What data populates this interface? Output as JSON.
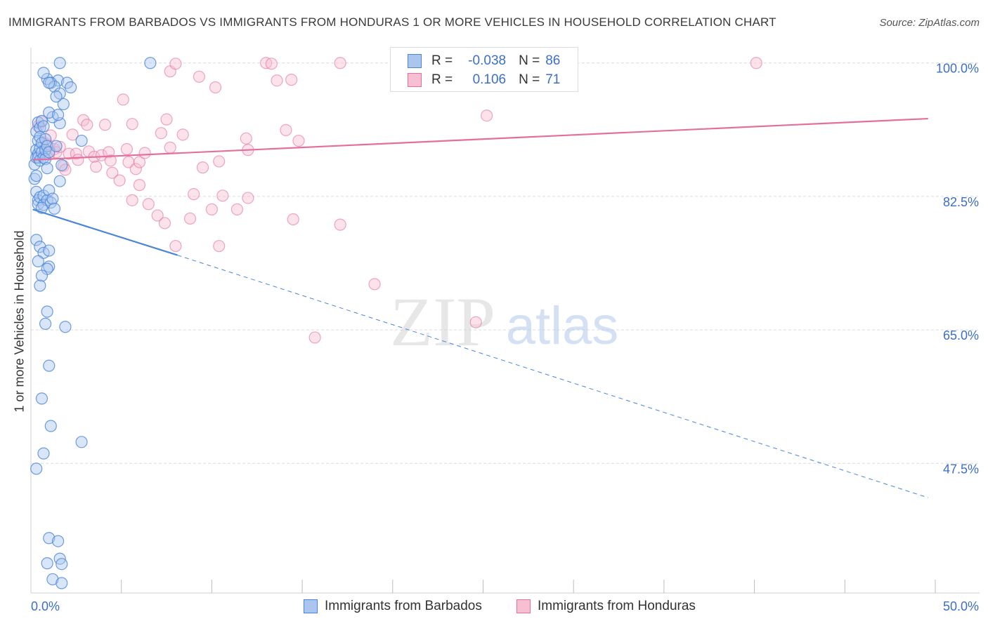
{
  "title": "IMMIGRANTS FROM BARBADOS VS IMMIGRANTS FROM HONDURAS 1 OR MORE VEHICLES IN HOUSEHOLD CORRELATION CHART",
  "source": "Source: ZipAtlas.com",
  "watermark": {
    "zip": "ZIP",
    "atlas": "atlas"
  },
  "stats": {
    "r_label": "R =",
    "n_label": "N =",
    "barbados": {
      "r": "-0.038",
      "n": "86"
    },
    "honduras": {
      "r": "0.106",
      "n": "71"
    }
  },
  "colors": {
    "blue": "#4a86d8",
    "blue_fill": "#aac6ef",
    "pink": "#e46f9c",
    "pink_fill": "#f7bfd2",
    "grid": "#dcdcdc",
    "tick_label": "#3b6fc9"
  },
  "chart_data": {
    "type": "scatter",
    "title": "IMMIGRANTS FROM BARBADOS VS IMMIGRANTS FROM HONDURAS 1 OR MORE VEHICLES IN HOUSEHOLD CORRELATION CHART",
    "xlabel": "",
    "ylabel": "1 or more Vehicles in Household",
    "xlim": [
      0,
      50
    ],
    "ylim": [
      30.5,
      102
    ],
    "x_tick_labels": {
      "min": "0.0%",
      "max": "50.0%"
    },
    "y_ticks": [
      {
        "value": 100,
        "label": "100.0%"
      },
      {
        "value": 82.5,
        "label": "82.5%"
      },
      {
        "value": 65,
        "label": "65.0%"
      },
      {
        "value": 47.5,
        "label": "47.5%"
      }
    ],
    "grid": true,
    "legend": "bottom-center",
    "series": [
      {
        "name": "Immigrants from Barbados",
        "color": "#4a86d8",
        "trend": {
          "x1": 0.1,
          "y1": 80.8,
          "x2": 8.1,
          "y2": 74.8,
          "dash_to_x": 49.6,
          "dash_to_y": 43.0
        },
        "points": [
          [
            0.2,
            86.7
          ],
          [
            0.2,
            84.8
          ],
          [
            0.3,
            91.0
          ],
          [
            0.3,
            88.6
          ],
          [
            0.3,
            87.6
          ],
          [
            0.3,
            85.2
          ],
          [
            0.4,
            92.2
          ],
          [
            0.4,
            89.8
          ],
          [
            0.4,
            88.1
          ],
          [
            0.4,
            87.6
          ],
          [
            0.5,
            91.5
          ],
          [
            0.5,
            90.3
          ],
          [
            0.5,
            88.8
          ],
          [
            0.5,
            87.2
          ],
          [
            0.6,
            92.4
          ],
          [
            0.6,
            89.5
          ],
          [
            0.6,
            88.3
          ],
          [
            0.7,
            91.7
          ],
          [
            0.7,
            87.6
          ],
          [
            0.8,
            90.0
          ],
          [
            0.8,
            88.6
          ],
          [
            0.8,
            87.4
          ],
          [
            0.9,
            89.1
          ],
          [
            0.9,
            86.2
          ],
          [
            1.0,
            88.3
          ],
          [
            0.3,
            83.1
          ],
          [
            0.4,
            82.0
          ],
          [
            0.4,
            81.5
          ],
          [
            0.5,
            82.4
          ],
          [
            0.7,
            82.6
          ],
          [
            0.7,
            81.4
          ],
          [
            0.9,
            82.0
          ],
          [
            1.0,
            83.3
          ],
          [
            1.1,
            81.7
          ],
          [
            0.6,
            81.0
          ],
          [
            1.2,
            82.2
          ],
          [
            1.3,
            80.9
          ],
          [
            1.4,
            89.1
          ],
          [
            1.7,
            86.6
          ],
          [
            1.6,
            84.5
          ],
          [
            1.6,
            92.1
          ],
          [
            2.8,
            89.8
          ],
          [
            1.5,
            97.7
          ],
          [
            2.0,
            97.4
          ],
          [
            2.2,
            96.8
          ],
          [
            0.9,
            97.9
          ],
          [
            1.1,
            97.4
          ],
          [
            1.3,
            96.9
          ],
          [
            1.6,
            96.0
          ],
          [
            1.8,
            94.6
          ],
          [
            1.4,
            95.6
          ],
          [
            1.2,
            92.9
          ],
          [
            1.0,
            93.5
          ],
          [
            1.5,
            93.2
          ],
          [
            1.6,
            100.0
          ],
          [
            6.6,
            100.0
          ],
          [
            0.7,
            98.7
          ],
          [
            1.0,
            97.4
          ],
          [
            0.3,
            76.8
          ],
          [
            0.5,
            75.9
          ],
          [
            0.7,
            75.1
          ],
          [
            1.0,
            75.4
          ],
          [
            0.4,
            74.0
          ],
          [
            1.0,
            73.3
          ],
          [
            0.9,
            73.0
          ],
          [
            0.6,
            72.1
          ],
          [
            0.5,
            70.8
          ],
          [
            0.9,
            67.4
          ],
          [
            0.8,
            65.8
          ],
          [
            1.9,
            65.4
          ],
          [
            1.0,
            60.3
          ],
          [
            0.6,
            56.0
          ],
          [
            1.1,
            52.4
          ],
          [
            2.8,
            50.3
          ],
          [
            0.7,
            48.8
          ],
          [
            0.3,
            46.8
          ],
          [
            1.0,
            37.7
          ],
          [
            1.5,
            37.3
          ],
          [
            1.6,
            35.0
          ],
          [
            0.9,
            34.4
          ],
          [
            1.7,
            34.3
          ],
          [
            1.2,
            32.3
          ],
          [
            1.7,
            31.8
          ]
        ]
      },
      {
        "name": "Immigrants from Honduras",
        "color": "#e46f9c",
        "trend": {
          "x1": 0.1,
          "y1": 87.3,
          "x2": 49.6,
          "y2": 92.7
        },
        "points": [
          [
            0.4,
            91.7
          ],
          [
            0.6,
            92.3
          ],
          [
            0.7,
            89.6
          ],
          [
            0.9,
            89.3
          ],
          [
            1.0,
            88.0
          ],
          [
            1.1,
            90.5
          ],
          [
            1.3,
            88.7
          ],
          [
            1.4,
            88.3
          ],
          [
            1.6,
            89.0
          ],
          [
            1.8,
            86.5
          ],
          [
            1.9,
            86.0
          ],
          [
            2.1,
            88.1
          ],
          [
            2.3,
            90.6
          ],
          [
            2.5,
            88.1
          ],
          [
            2.6,
            87.3
          ],
          [
            2.9,
            92.5
          ],
          [
            3.1,
            91.9
          ],
          [
            3.2,
            88.4
          ],
          [
            3.5,
            87.7
          ],
          [
            3.6,
            86.4
          ],
          [
            3.9,
            87.9
          ],
          [
            4.1,
            91.9
          ],
          [
            4.3,
            88.3
          ],
          [
            4.4,
            87.2
          ],
          [
            4.5,
            85.6
          ],
          [
            4.9,
            84.6
          ],
          [
            5.3,
            88.7
          ],
          [
            5.4,
            87.0
          ],
          [
            5.6,
            92.0
          ],
          [
            5.8,
            86.1
          ],
          [
            5.1,
            95.2
          ],
          [
            6.0,
            87.0
          ],
          [
            6.3,
            88.2
          ],
          [
            7.2,
            90.8
          ],
          [
            7.5,
            92.6
          ],
          [
            7.7,
            88.9
          ],
          [
            8.4,
            90.6
          ],
          [
            9.5,
            86.3
          ],
          [
            10.4,
            87.1
          ],
          [
            11.9,
            90.1
          ],
          [
            12.0,
            88.6
          ],
          [
            14.1,
            91.2
          ],
          [
            14.8,
            89.8
          ],
          [
            6.0,
            84.0
          ],
          [
            5.6,
            82.0
          ],
          [
            6.5,
            81.5
          ],
          [
            7.0,
            80.0
          ],
          [
            7.4,
            79.0
          ],
          [
            8.0,
            76.0
          ],
          [
            9.0,
            82.8
          ],
          [
            8.8,
            79.6
          ],
          [
            10.0,
            80.8
          ],
          [
            10.6,
            82.6
          ],
          [
            11.4,
            80.8
          ],
          [
            12.0,
            82.3
          ],
          [
            10.4,
            76.0
          ],
          [
            14.5,
            79.5
          ],
          [
            17.1,
            78.8
          ],
          [
            19.0,
            71.0
          ],
          [
            15.7,
            64.0
          ],
          [
            24.6,
            66.0
          ],
          [
            25.2,
            93.1
          ],
          [
            7.7,
            98.9
          ],
          [
            8.0,
            99.9
          ],
          [
            9.3,
            98.2
          ],
          [
            10.2,
            96.8
          ],
          [
            13.0,
            100.0
          ],
          [
            13.3,
            99.9
          ],
          [
            13.6,
            97.7
          ],
          [
            14.4,
            97.8
          ],
          [
            17.1,
            100.0
          ],
          [
            40.1,
            100.0
          ]
        ]
      }
    ]
  },
  "legend": {
    "barbados_label": "Immigrants from Barbados",
    "honduras_label": "Immigrants from Honduras"
  }
}
